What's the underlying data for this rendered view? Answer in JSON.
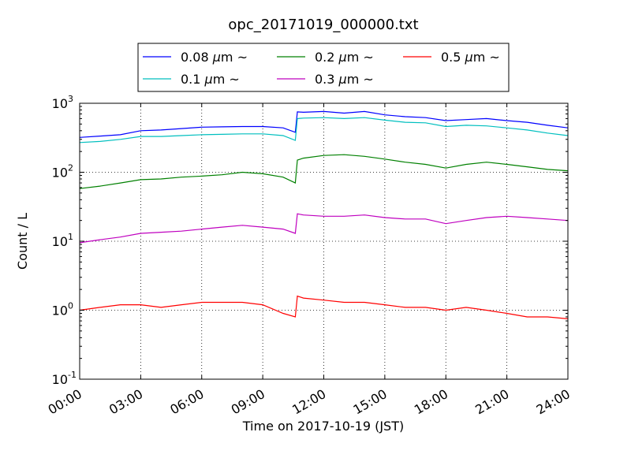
{
  "chart_data": {
    "type": "line",
    "title": "opc_20171019_000000.txt",
    "xlabel": "Time on 2017-10-19 (JST)",
    "ylabel": "Count / L",
    "yscale": "log",
    "ylim": [
      0.1,
      1000
    ],
    "xlim_hours": [
      0,
      24
    ],
    "x_tick_labels": [
      "00:00",
      "03:00",
      "06:00",
      "09:00",
      "12:00",
      "15:00",
      "18:00",
      "21:00",
      "24:00"
    ],
    "y_tick_labels": [
      {
        "base": "10",
        "exp": "-1"
      },
      {
        "base": "10",
        "exp": "0"
      },
      {
        "base": "10",
        "exp": "1"
      },
      {
        "base": "10",
        "exp": "2"
      },
      {
        "base": "10",
        "exp": "3"
      }
    ],
    "grid": true,
    "legend_position": "top (above plot)",
    "legend_symbol": "~",
    "x_hours": [
      0,
      1,
      2,
      3,
      4,
      5,
      6,
      7,
      8,
      9,
      10,
      10.6,
      10.7,
      11,
      12,
      13,
      14,
      15,
      16,
      17,
      18,
      19,
      20,
      21,
      22,
      23,
      24
    ],
    "series": [
      {
        "name": "0.08",
        "unit": "μm",
        "color": "#0000ff",
        "values": [
          320,
          335,
          350,
          400,
          410,
          430,
          450,
          455,
          460,
          460,
          440,
          380,
          750,
          740,
          760,
          720,
          760,
          680,
          640,
          620,
          560,
          580,
          600,
          560,
          530,
          480,
          440
        ]
      },
      {
        "name": "0.1",
        "unit": "μm",
        "color": "#00bfbf",
        "values": [
          270,
          280,
          300,
          330,
          330,
          340,
          350,
          355,
          360,
          360,
          340,
          290,
          600,
          610,
          620,
          600,
          620,
          570,
          530,
          520,
          460,
          480,
          470,
          440,
          410,
          370,
          340
        ]
      },
      {
        "name": "0.2",
        "unit": "μm",
        "color": "#008000",
        "values": [
          58,
          63,
          70,
          78,
          80,
          85,
          88,
          92,
          100,
          95,
          85,
          70,
          150,
          160,
          175,
          180,
          170,
          155,
          140,
          130,
          115,
          130,
          140,
          130,
          120,
          110,
          105
        ]
      },
      {
        "name": "0.3",
        "unit": "μm",
        "color": "#bf00bf",
        "values": [
          9.5,
          10.5,
          11.5,
          13,
          13.5,
          14,
          15,
          16,
          17,
          16,
          15,
          13,
          25,
          24,
          23,
          23,
          24,
          22,
          21,
          21,
          18,
          20,
          22,
          23,
          22,
          21,
          20
        ]
      },
      {
        "name": "0.5",
        "unit": "μm",
        "color": "#ff0000",
        "values": [
          1.0,
          1.1,
          1.2,
          1.2,
          1.1,
          1.2,
          1.3,
          1.3,
          1.3,
          1.2,
          0.9,
          0.8,
          1.6,
          1.5,
          1.4,
          1.3,
          1.3,
          1.2,
          1.1,
          1.1,
          1.0,
          1.1,
          1.0,
          0.9,
          0.8,
          0.8,
          0.75
        ]
      }
    ]
  }
}
